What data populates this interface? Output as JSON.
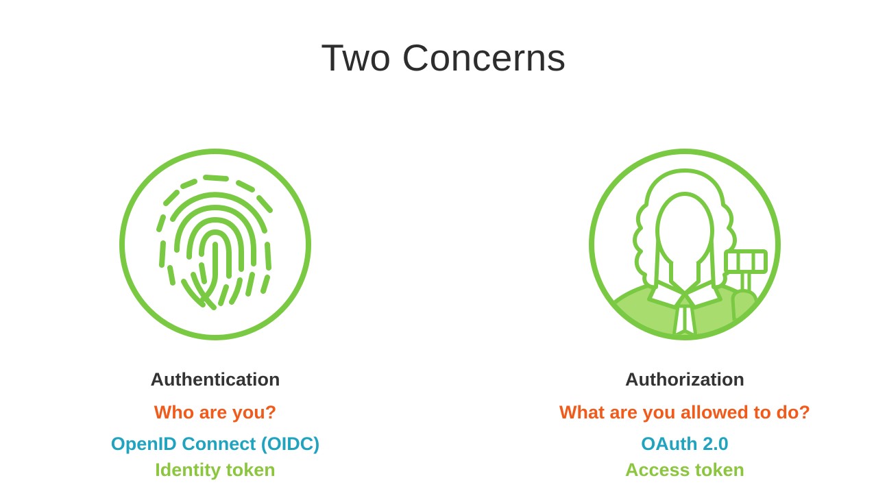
{
  "slide": {
    "title": "Two Concerns"
  },
  "colors": {
    "accent_green": "#7ac943",
    "question_orange": "#f05a1a",
    "protocol_teal": "#1fa3bf",
    "token_green": "#8cc63f"
  },
  "left": {
    "icon": "fingerprint-icon",
    "concept": "Authentication",
    "question": "Who are you?",
    "protocol": "OpenID Connect (OIDC)",
    "token": "Identity token"
  },
  "right": {
    "icon": "judge-icon",
    "concept": "Authorization",
    "question": "What are you allowed to do?",
    "protocol": "OAuth 2.0",
    "token": "Access token"
  }
}
